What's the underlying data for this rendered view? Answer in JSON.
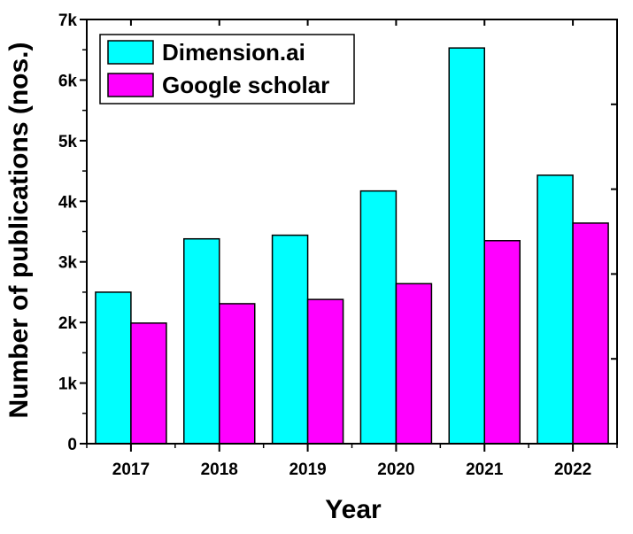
{
  "chart_data": {
    "type": "bar",
    "categories": [
      "2017",
      "2018",
      "2019",
      "2020",
      "2021",
      "2022"
    ],
    "series": [
      {
        "name": "Dimension.ai",
        "color": "#00FFFF",
        "values": [
          2500,
          3380,
          3440,
          4170,
          6530,
          4430
        ]
      },
      {
        "name": "Google scholar",
        "color": "#FF00FF",
        "values": [
          1990,
          2310,
          2380,
          2640,
          3350,
          3640
        ]
      }
    ],
    "xlabel": "Year",
    "ylabel": "Number of publications (nos.)",
    "ylim": [
      0,
      7000
    ],
    "yticks": [
      {
        "value": 0,
        "label": "0"
      },
      {
        "value": 1000,
        "label": "1k"
      },
      {
        "value": 2000,
        "label": "2k"
      },
      {
        "value": 3000,
        "label": "3k"
      },
      {
        "value": 4000,
        "label": "4k"
      },
      {
        "value": 5000,
        "label": "5k"
      },
      {
        "value": 6000,
        "label": "6k"
      },
      {
        "value": 7000,
        "label": "7k"
      }
    ],
    "grid": false,
    "legend_position": "top-left"
  }
}
